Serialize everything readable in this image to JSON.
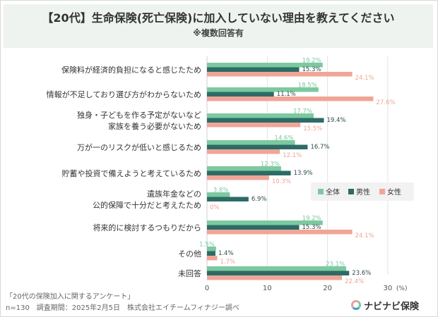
{
  "header": {
    "title": "【20代】生命保険(死亡保険)に加入していない理由を教えてください",
    "subtitle": "※複数回答有"
  },
  "footer": {
    "survey_name": "「20代の保険加入に関するアンケート」",
    "survey_info": "n=130　調査期間：2025年2月5日　株式会社エイチームフィナジー調べ"
  },
  "logo": {
    "text": "ナビナビ保険"
  },
  "colors": {
    "all": "#7cc9a0",
    "male": "#2d6b66",
    "female": "#f0a597",
    "header_bg": "#eef3ef",
    "grid": "#e3e3e3"
  },
  "chart_data": {
    "type": "bar",
    "orientation": "horizontal",
    "categories": [
      [
        "保険料が経済的負担になると感じたため"
      ],
      [
        "情報が不足しており選び方がわからないため"
      ],
      [
        "独身・子どもを作る予定がないなど",
        "家族を養う必要がないため"
      ],
      [
        "万が一のリスクが低いと感じるため"
      ],
      [
        "貯蓄や投資で備えようと考えているため"
      ],
      [
        "遺族年金などの",
        "公的保障で十分だと考えたため"
      ],
      [
        "将来的に検討するつもりだから"
      ],
      [
        "その他"
      ],
      [
        "未回答"
      ]
    ],
    "series": [
      {
        "name": "全体",
        "color": "#7cc9a0",
        "values": [
          19.2,
          18.5,
          17.7,
          14.6,
          12.3,
          3.8,
          19.2,
          1.5,
          23.1
        ],
        "labels": [
          "19.2%",
          "18.5%",
          "17.7%",
          "14.6%",
          "12.3%",
          "3.8%",
          "19.2%",
          "1.5%",
          "23.1%"
        ]
      },
      {
        "name": "男性",
        "color": "#2d6b66",
        "values": [
          15.3,
          11.1,
          19.4,
          16.7,
          13.9,
          6.9,
          15.3,
          1.4,
          23.6
        ],
        "labels": [
          "15.3%",
          "11.1%",
          "19.4%",
          "16.7%",
          "13.9%",
          "6.9%",
          "15.3%",
          "1.4%",
          "23.6%"
        ]
      },
      {
        "name": "女性",
        "color": "#f0a597",
        "values": [
          24.1,
          27.6,
          15.5,
          12.1,
          10.3,
          0,
          24.1,
          1.7,
          22.4
        ],
        "labels": [
          "24.1%",
          "27.6%",
          "15.5%",
          "12.1%",
          "10.3%",
          "0%",
          "24.1%",
          "1.7%",
          "22.4%"
        ]
      }
    ],
    "xticks": [
      "0",
      "10",
      "20",
      "30"
    ],
    "xtick_values": [
      0,
      10,
      20,
      30
    ],
    "xunit": "(%)",
    "xlim": [
      0,
      30
    ],
    "grid": true,
    "legend_position": "right, middle"
  }
}
